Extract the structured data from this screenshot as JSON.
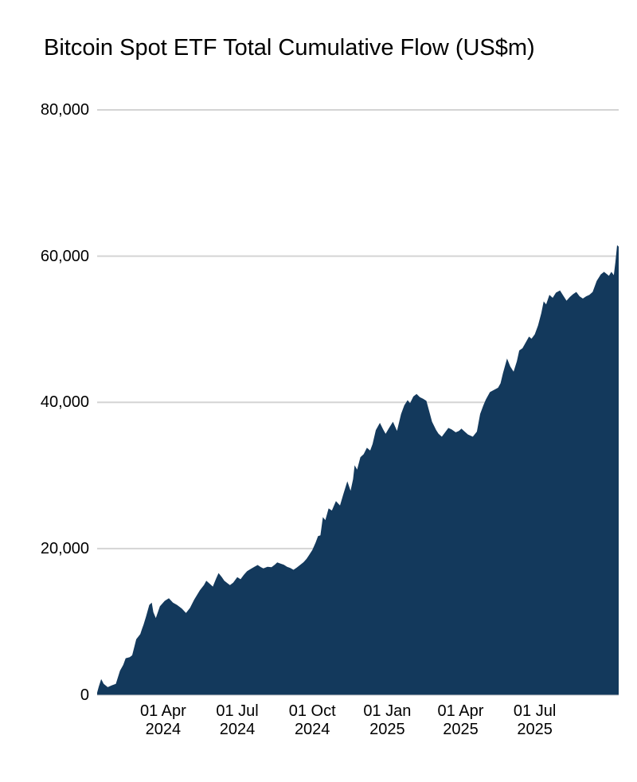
{
  "page": {
    "background": "#ffffff"
  },
  "chart_data": {
    "type": "area",
    "title": "Bitcoin Spot ETF Total Cumulative Flow (US$m)",
    "xlabel": "",
    "ylabel": "",
    "ylim": [
      0,
      80000
    ],
    "grid": "horizontal",
    "legend": "none",
    "fill_color": "#13395C",
    "grid_color": "#d4d4d4",
    "text_color": "#000000",
    "x_domain": [
      "2024-01-11",
      "2025-10-12"
    ],
    "y_ticks": [
      {
        "value": 0,
        "label": "0"
      },
      {
        "value": 20000,
        "label": "20,000"
      },
      {
        "value": 40000,
        "label": "40,000"
      },
      {
        "value": 60000,
        "label": "60,000"
      },
      {
        "value": 80000,
        "label": "80,000"
      }
    ],
    "x_ticks": [
      {
        "date": "2024-04-01",
        "line1": "01 Apr",
        "line2": "2024"
      },
      {
        "date": "2024-07-01",
        "line1": "01 Jul",
        "line2": "2024"
      },
      {
        "date": "2024-10-01",
        "line1": "01 Oct",
        "line2": "2024"
      },
      {
        "date": "2025-01-01",
        "line1": "01 Jan",
        "line2": "2025"
      },
      {
        "date": "2025-04-01",
        "line1": "01 Apr",
        "line2": "2025"
      },
      {
        "date": "2025-07-01",
        "line1": "01 Jul",
        "line2": "2025"
      }
    ],
    "series": [
      {
        "name": "Total cumulative flow (US$m)",
        "points": [
          [
            "2024-01-11",
            300
          ],
          [
            "2024-01-13",
            1100
          ],
          [
            "2024-01-16",
            2150
          ],
          [
            "2024-01-19",
            1500
          ],
          [
            "2024-01-24",
            1050
          ],
          [
            "2024-01-29",
            1300
          ],
          [
            "2024-02-03",
            1500
          ],
          [
            "2024-02-08",
            3300
          ],
          [
            "2024-02-12",
            4100
          ],
          [
            "2024-02-15",
            5000
          ],
          [
            "2024-02-20",
            5150
          ],
          [
            "2024-02-23",
            5400
          ],
          [
            "2024-02-28",
            7600
          ],
          [
            "2024-03-04",
            8300
          ],
          [
            "2024-03-06",
            9000
          ],
          [
            "2024-03-08",
            9600
          ],
          [
            "2024-03-11",
            10700
          ],
          [
            "2024-03-15",
            12300
          ],
          [
            "2024-03-18",
            12600
          ],
          [
            "2024-03-20",
            11300
          ],
          [
            "2024-03-23",
            10500
          ],
          [
            "2024-03-28",
            12100
          ],
          [
            "2024-04-03",
            12850
          ],
          [
            "2024-04-08",
            13200
          ],
          [
            "2024-04-13",
            12600
          ],
          [
            "2024-04-18",
            12300
          ],
          [
            "2024-04-24",
            11800
          ],
          [
            "2024-04-29",
            11200
          ],
          [
            "2024-05-04",
            11900
          ],
          [
            "2024-05-09",
            13000
          ],
          [
            "2024-05-16",
            14300
          ],
          [
            "2024-05-21",
            15000
          ],
          [
            "2024-05-24",
            15600
          ],
          [
            "2024-05-28",
            15200
          ],
          [
            "2024-06-01",
            14800
          ],
          [
            "2024-06-05",
            15900
          ],
          [
            "2024-06-08",
            16650
          ],
          [
            "2024-06-12",
            16100
          ],
          [
            "2024-06-15",
            15600
          ],
          [
            "2024-06-19",
            15250
          ],
          [
            "2024-06-22",
            15000
          ],
          [
            "2024-06-26",
            15350
          ],
          [
            "2024-07-01",
            16100
          ],
          [
            "2024-07-05",
            15800
          ],
          [
            "2024-07-09",
            16400
          ],
          [
            "2024-07-13",
            16900
          ],
          [
            "2024-07-18",
            17250
          ],
          [
            "2024-07-22",
            17500
          ],
          [
            "2024-07-26",
            17750
          ],
          [
            "2024-07-30",
            17450
          ],
          [
            "2024-08-02",
            17300
          ],
          [
            "2024-08-07",
            17500
          ],
          [
            "2024-08-12",
            17450
          ],
          [
            "2024-08-16",
            17800
          ],
          [
            "2024-08-19",
            18100
          ],
          [
            "2024-08-23",
            17950
          ],
          [
            "2024-08-27",
            17800
          ],
          [
            "2024-08-31",
            17500
          ],
          [
            "2024-09-04",
            17350
          ],
          [
            "2024-09-08",
            17100
          ],
          [
            "2024-09-12",
            17400
          ],
          [
            "2024-09-16",
            17750
          ],
          [
            "2024-09-20",
            18100
          ],
          [
            "2024-09-24",
            18600
          ],
          [
            "2024-09-27",
            19100
          ],
          [
            "2024-10-01",
            19800
          ],
          [
            "2024-10-05",
            20800
          ],
          [
            "2024-10-08",
            21700
          ],
          [
            "2024-10-11",
            21800
          ],
          [
            "2024-10-14",
            24300
          ],
          [
            "2024-10-17",
            23900
          ],
          [
            "2024-10-21",
            25500
          ],
          [
            "2024-10-25",
            25200
          ],
          [
            "2024-10-30",
            26500
          ],
          [
            "2024-11-04",
            25900
          ],
          [
            "2024-11-08",
            27400
          ],
          [
            "2024-11-13",
            29200
          ],
          [
            "2024-11-17",
            27900
          ],
          [
            "2024-11-20",
            29500
          ],
          [
            "2024-11-22",
            31400
          ],
          [
            "2024-11-25",
            30800
          ],
          [
            "2024-11-29",
            32500
          ],
          [
            "2024-12-03",
            32900
          ],
          [
            "2024-12-07",
            33800
          ],
          [
            "2024-12-11",
            33400
          ],
          [
            "2024-12-14",
            34300
          ],
          [
            "2024-12-18",
            36200
          ],
          [
            "2024-12-23",
            37200
          ],
          [
            "2024-12-27",
            36300
          ],
          [
            "2024-12-30",
            35700
          ],
          [
            "2025-01-03",
            36450
          ],
          [
            "2025-01-08",
            37350
          ],
          [
            "2025-01-13",
            36100
          ],
          [
            "2025-01-18",
            38400
          ],
          [
            "2025-01-22",
            39600
          ],
          [
            "2025-01-26",
            40300
          ],
          [
            "2025-01-29",
            39900
          ],
          [
            "2025-02-02",
            40800
          ],
          [
            "2025-02-06",
            41150
          ],
          [
            "2025-02-10",
            40700
          ],
          [
            "2025-02-14",
            40500
          ],
          [
            "2025-02-18",
            40200
          ],
          [
            "2025-02-21",
            39000
          ],
          [
            "2025-02-25",
            37350
          ],
          [
            "2025-03-02",
            36200
          ],
          [
            "2025-03-05",
            35700
          ],
          [
            "2025-03-09",
            35300
          ],
          [
            "2025-03-13",
            35900
          ],
          [
            "2025-03-17",
            36500
          ],
          [
            "2025-03-21",
            36300
          ],
          [
            "2025-03-26",
            35900
          ],
          [
            "2025-03-30",
            36100
          ],
          [
            "2025-04-02",
            36400
          ],
          [
            "2025-04-06",
            36000
          ],
          [
            "2025-04-10",
            35600
          ],
          [
            "2025-04-16",
            35300
          ],
          [
            "2025-04-21",
            36000
          ],
          [
            "2025-04-25",
            38400
          ],
          [
            "2025-04-29",
            39600
          ],
          [
            "2025-05-02",
            40400
          ],
          [
            "2025-05-07",
            41400
          ],
          [
            "2025-05-12",
            41700
          ],
          [
            "2025-05-17",
            42000
          ],
          [
            "2025-05-20",
            42600
          ],
          [
            "2025-05-23",
            44000
          ],
          [
            "2025-05-28",
            46000
          ],
          [
            "2025-06-01",
            44900
          ],
          [
            "2025-06-05",
            44200
          ],
          [
            "2025-06-09",
            45600
          ],
          [
            "2025-06-12",
            47100
          ],
          [
            "2025-06-16",
            47400
          ],
          [
            "2025-06-19",
            48000
          ],
          [
            "2025-06-24",
            49000
          ],
          [
            "2025-06-27",
            48700
          ],
          [
            "2025-07-01",
            49300
          ],
          [
            "2025-07-05",
            50500
          ],
          [
            "2025-07-09",
            52200
          ],
          [
            "2025-07-12",
            53800
          ],
          [
            "2025-07-15",
            53400
          ],
          [
            "2025-07-19",
            54700
          ],
          [
            "2025-07-23",
            54300
          ],
          [
            "2025-07-27",
            55000
          ],
          [
            "2025-08-01",
            55300
          ],
          [
            "2025-08-05",
            54600
          ],
          [
            "2025-08-09",
            53900
          ],
          [
            "2025-08-13",
            54400
          ],
          [
            "2025-08-17",
            54800
          ],
          [
            "2025-08-21",
            55100
          ],
          [
            "2025-08-25",
            54500
          ],
          [
            "2025-08-29",
            54200
          ],
          [
            "2025-09-02",
            54500
          ],
          [
            "2025-09-06",
            54700
          ],
          [
            "2025-09-10",
            55100
          ],
          [
            "2025-09-15",
            56600
          ],
          [
            "2025-09-20",
            57500
          ],
          [
            "2025-09-24",
            57850
          ],
          [
            "2025-09-28",
            57500
          ],
          [
            "2025-09-30",
            57300
          ],
          [
            "2025-10-03",
            57850
          ],
          [
            "2025-10-06",
            57400
          ],
          [
            "2025-10-08",
            59200
          ],
          [
            "2025-10-10",
            61500
          ],
          [
            "2025-10-12",
            61300
          ]
        ]
      }
    ]
  }
}
